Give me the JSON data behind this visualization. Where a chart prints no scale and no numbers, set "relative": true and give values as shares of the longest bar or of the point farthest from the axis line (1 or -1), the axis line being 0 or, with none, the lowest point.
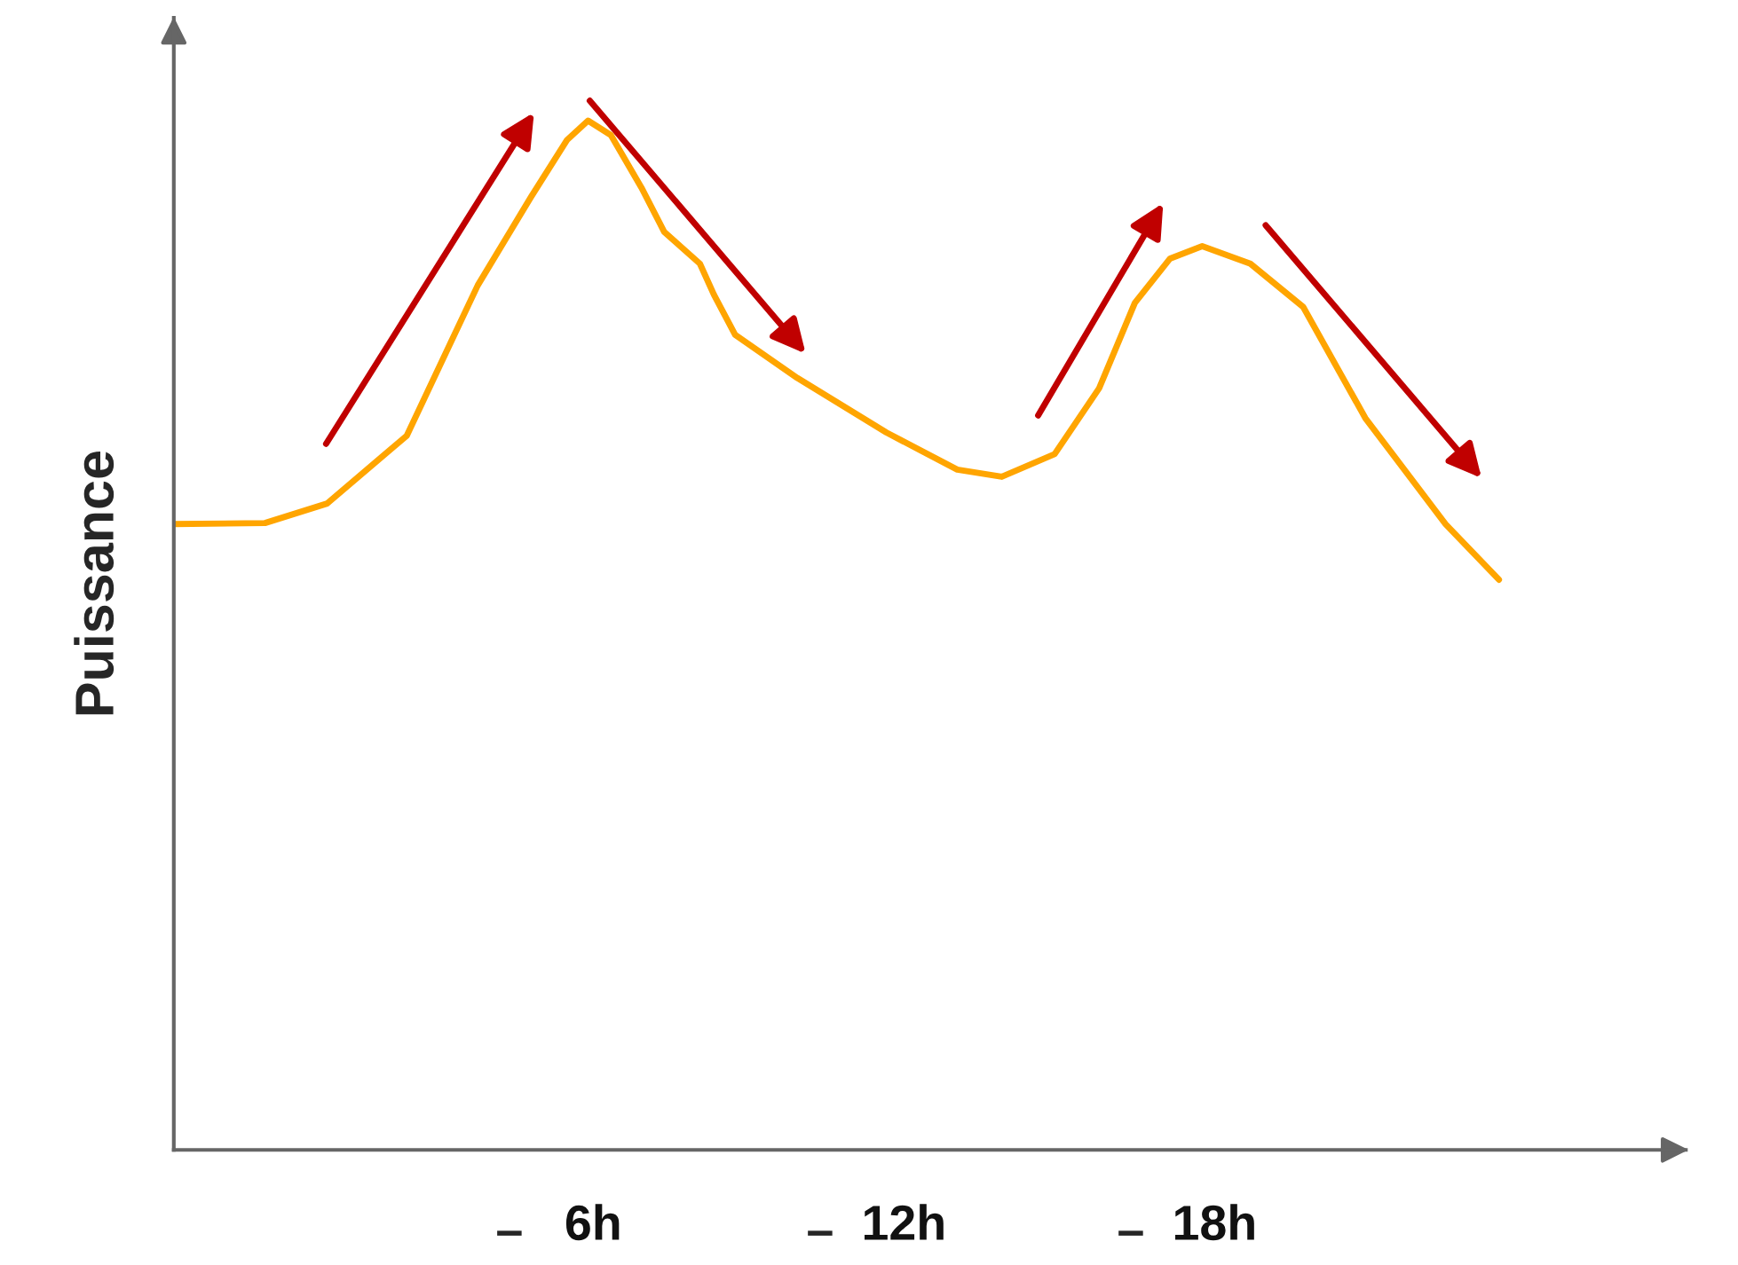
{
  "chart_data": {
    "type": "line",
    "ylabel": "Puissance",
    "relative": true,
    "tick_labels": "x",
    "grid": false,
    "legend": false,
    "marker": "none",
    "line_style": "solid",
    "xlim": [
      -2.1,
      27.1
    ],
    "xticks": [
      {
        "value": 6,
        "label": "6h"
      },
      {
        "value": 12,
        "label": "12h"
      },
      {
        "value": 18,
        "label": "18h"
      }
    ],
    "annotations": [
      "–",
      "–",
      "–"
    ],
    "series": [
      {
        "color": "#ffa500",
        "x": [
          -2.1,
          -0.34,
          0.86,
          2.4,
          3.77,
          4.8,
          5.49,
          5.9,
          6.34,
          6.93,
          7.37,
          8.06,
          8.33,
          8.74,
          9.94,
          11.66,
          13.03,
          13.89,
          14.91,
          15.77,
          16.46,
          17.14,
          17.76,
          18.69,
          19.71,
          20.91,
          22.46,
          23.49
        ],
        "values": [
          0.608,
          0.609,
          0.628,
          0.694,
          0.84,
          0.926,
          0.981,
          1.0,
          0.986,
          0.935,
          0.892,
          0.861,
          0.831,
          0.792,
          0.75,
          0.697,
          0.661,
          0.654,
          0.676,
          0.74,
          0.823,
          0.866,
          0.878,
          0.861,
          0.819,
          0.711,
          0.608,
          0.554
        ]
      }
    ]
  }
}
